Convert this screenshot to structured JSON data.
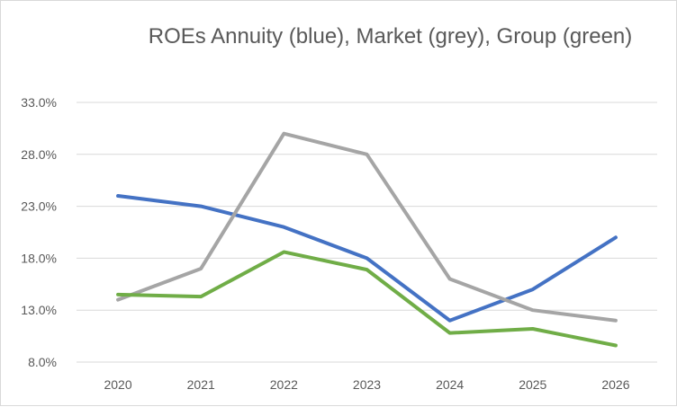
{
  "chart_data": {
    "type": "line",
    "title": "ROEs Annuity (blue), Market (grey), Group (green)",
    "xlabel": "",
    "ylabel": "",
    "categories": [
      "2020",
      "2021",
      "2022",
      "2023",
      "2024",
      "2025",
      "2026"
    ],
    "ylim": [
      8.0,
      33.0
    ],
    "yticks": [
      "8.0%",
      "13.0%",
      "18.0%",
      "23.0%",
      "28.0%",
      "33.0%"
    ],
    "grid": true,
    "legend": "none",
    "series": [
      {
        "color": "#4472c4",
        "values": [
          24.0,
          23.0,
          21.0,
          18.0,
          12.0,
          15.0,
          20.0
        ]
      },
      {
        "color": "#a5a5a5",
        "values": [
          14.0,
          17.0,
          30.0,
          28.0,
          16.0,
          13.0,
          12.0
        ]
      },
      {
        "color": "#70ad47",
        "values": [
          14.5,
          14.3,
          18.6,
          16.9,
          10.8,
          11.2,
          9.6
        ]
      }
    ]
  }
}
